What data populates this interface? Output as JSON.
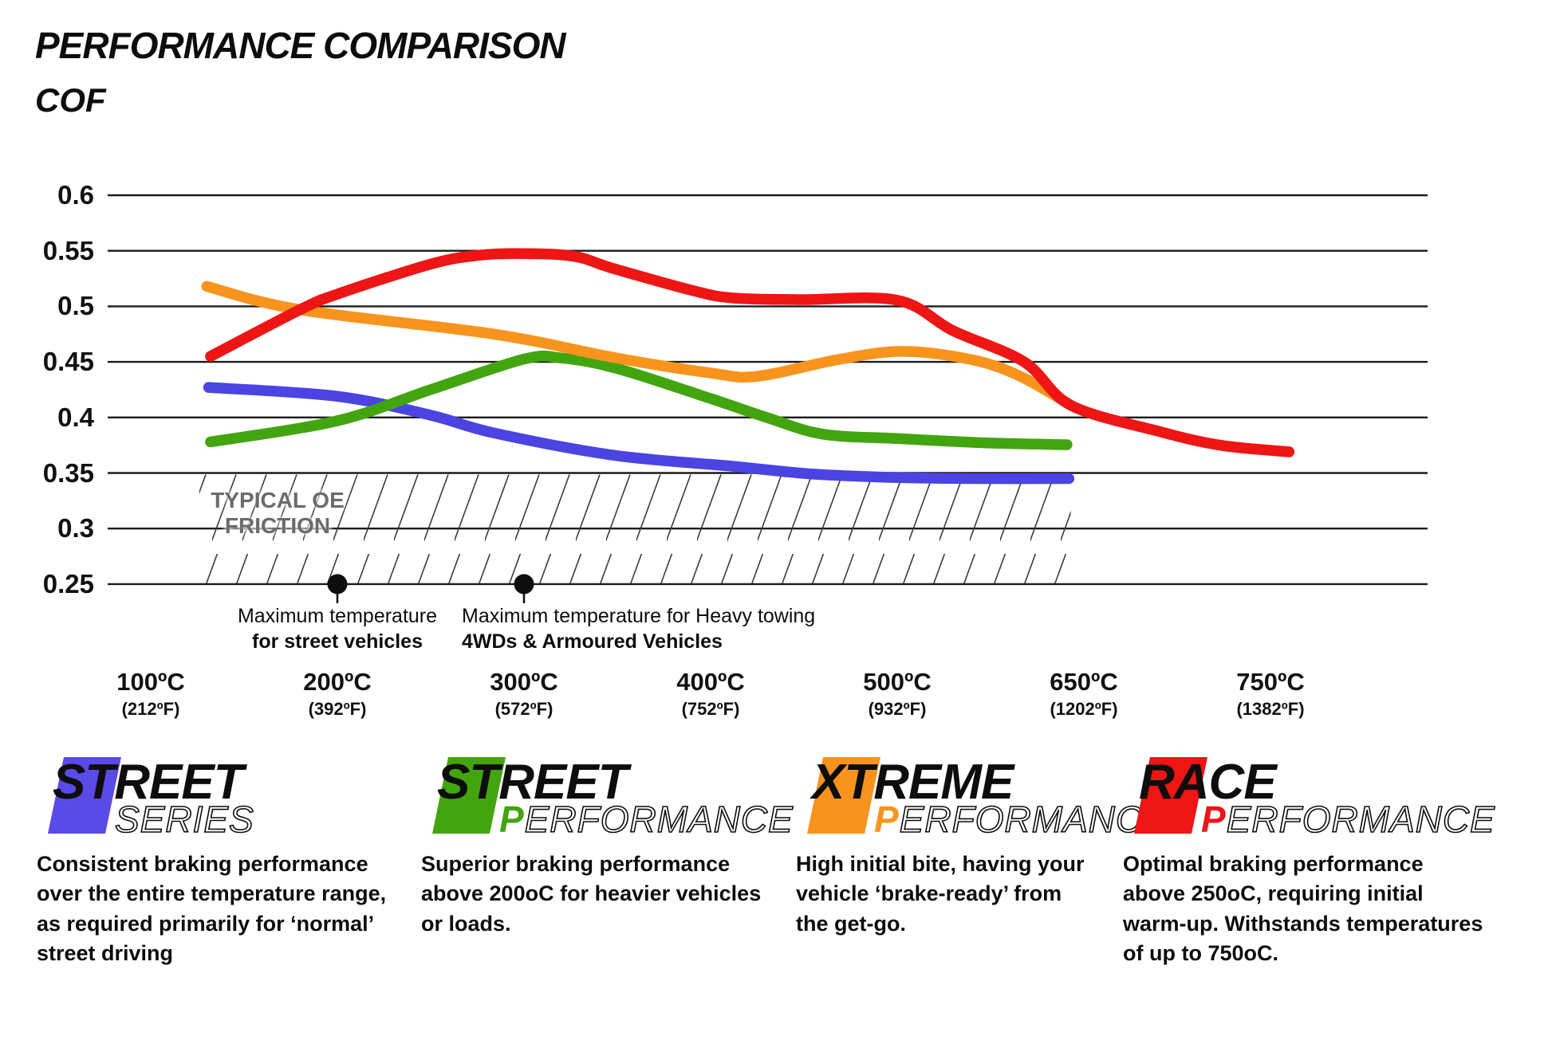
{
  "title": "PERFORMANCE COMPARISON",
  "ylabel": "COF",
  "chart_data": {
    "type": "line",
    "title": "PERFORMANCE COMPARISON",
    "ylabel": "COF",
    "grid": true,
    "x_axis": {
      "tick_labels_c": [
        "100ºC",
        "200ºC",
        "300ºC",
        "400ºC",
        "500ºC",
        "650ºC",
        "750ºC"
      ],
      "tick_labels_f": [
        "(212ºF)",
        "(392ºF)",
        "(572ºF)",
        "(752ºF)",
        "(932ºF)",
        "(1202ºF)",
        "(1382ºF)"
      ]
    },
    "y_axis": {
      "tick_labels": [
        "0.6",
        "0.55",
        "0.5",
        "0.45",
        "0.4",
        "0.35",
        "0.3",
        "0.25"
      ],
      "tick_values": [
        0.6,
        0.55,
        0.5,
        0.45,
        0.4,
        0.35,
        0.3,
        0.25
      ],
      "min": 0.25,
      "max": 0.6
    },
    "series": [
      {
        "name": "Street Series",
        "color": "#4b43e2",
        "points": [
          [
            0.31,
            0.427
          ],
          [
            1.0,
            0.419
          ],
          [
            1.5,
            0.402
          ],
          [
            1.84,
            0.386
          ],
          [
            2.48,
            0.366
          ],
          [
            3.12,
            0.356
          ],
          [
            3.55,
            0.349
          ],
          [
            3.98,
            0.346
          ],
          [
            4.4,
            0.345
          ],
          [
            4.92,
            0.345
          ]
        ]
      },
      {
        "name": "Street Performance",
        "color": "#42a50f",
        "points": [
          [
            0.32,
            0.378
          ],
          [
            1.0,
            0.397
          ],
          [
            1.5,
            0.425
          ],
          [
            2.0,
            0.4525
          ],
          [
            2.2,
            0.4535
          ],
          [
            2.5,
            0.444
          ],
          [
            3.0,
            0.417
          ],
          [
            3.3,
            0.4
          ],
          [
            3.6,
            0.385
          ],
          [
            4.0,
            0.381
          ],
          [
            4.5,
            0.377
          ],
          [
            4.91,
            0.3755
          ]
        ]
      },
      {
        "name": "Xtreme Performance",
        "color": "#f8941d",
        "points": [
          [
            0.3,
            0.518
          ],
          [
            0.8,
            0.497
          ],
          [
            1.84,
            0.475
          ],
          [
            2.48,
            0.454
          ],
          [
            3.0,
            0.44
          ],
          [
            3.25,
            0.437
          ],
          [
            3.68,
            0.452
          ],
          [
            4.03,
            0.4595
          ],
          [
            4.4,
            0.452
          ],
          [
            4.66,
            0.437
          ],
          [
            4.93,
            0.411
          ]
        ]
      },
      {
        "name": "Race Performance",
        "color": "#ee1515",
        "points": [
          [
            0.32,
            0.455
          ],
          [
            0.8,
            0.497
          ],
          [
            1.0,
            0.511
          ],
          [
            1.5,
            0.538
          ],
          [
            1.76,
            0.546
          ],
          [
            2.0,
            0.5475
          ],
          [
            2.27,
            0.545
          ],
          [
            2.48,
            0.534
          ],
          [
            2.91,
            0.514
          ],
          [
            3.12,
            0.5075
          ],
          [
            3.47,
            0.506
          ],
          [
            4.0,
            0.5055
          ],
          [
            4.3,
            0.478
          ],
          [
            4.68,
            0.45
          ],
          [
            4.93,
            0.411
          ],
          [
            5.39,
            0.388
          ],
          [
            5.73,
            0.375
          ],
          [
            6.1,
            0.369
          ]
        ]
      }
    ],
    "oe_zone": {
      "label_line1": "TYPICAL OE",
      "label_line2": "FRICTION",
      "top_value": 0.35,
      "bottom_value": 0.25,
      "t_start": 0.26,
      "t_end": 4.93
    },
    "annotations": [
      {
        "t": 1,
        "align": "center",
        "line1": "Maximum temperature",
        "line2": "for street vehicles"
      },
      {
        "t": 2,
        "align": "left",
        "line1": "Maximum temperature for Heavy towing",
        "line2": "4WDs & Armoured Vehicles"
      }
    ]
  },
  "legend": [
    {
      "word1": "STREET",
      "word2": "SERIES",
      "color": "#5a4ae8",
      "first_letter_filled": false,
      "desc": "Consistent braking performance over the entire temperature range, as required primarily for ‘normal’ street driving"
    },
    {
      "word1": "STREET",
      "word2": "PERFORMANCE",
      "color": "#42a50f",
      "first_letter_filled": true,
      "desc": "Superior braking performance above 200oC for heavier vehicles or loads."
    },
    {
      "word1": "XTREME",
      "word2": "PERFORMANCE",
      "color": "#f8941d",
      "first_letter_filled": true,
      "desc": "High initial bite, having your vehicle ‘brake-ready’ from the get-go."
    },
    {
      "word1": "RACE",
      "word2": "PERFORMANCE",
      "color": "#ee1515",
      "first_letter_filled": true,
      "desc": "Optimal braking performance above 250oC, requiring initial warm-up. Withstands temperatures of up to 750oC."
    }
  ]
}
